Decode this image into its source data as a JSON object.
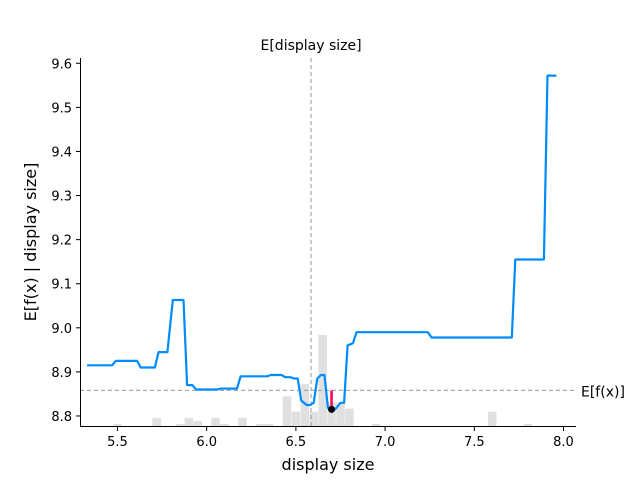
{
  "chart_data": {
    "type": "line",
    "title": "",
    "xlabel": "display size",
    "ylabel": "E[f(x) | display size]",
    "xlim": [
      5.29,
      8.07
    ],
    "ylim": [
      8.775,
      9.612
    ],
    "xticks": [
      5.5,
      6.0,
      6.5,
      7.0,
      7.5,
      8.0
    ],
    "xtick_labels": [
      "5.5",
      "6.0",
      "6.5",
      "7.0",
      "7.5",
      "8.0"
    ],
    "yticks": [
      8.8,
      8.9,
      9.0,
      9.1,
      9.2,
      9.3,
      9.4,
      9.5,
      9.6
    ],
    "ytick_labels": [
      "8.8",
      "8.9",
      "9.0",
      "9.1",
      "9.2",
      "9.3",
      "9.4",
      "9.5",
      "9.6"
    ],
    "expected_x": {
      "label": "E[display size]",
      "value": 6.585
    },
    "expected_y": {
      "label": "E[f(x)]",
      "value": 8.858
    },
    "highlight": {
      "x": 6.7,
      "y_point": 8.815,
      "y_ref": 8.858,
      "segment_color": "#ff0051",
      "point_color": "#000000"
    },
    "line_color": "#008bfb",
    "histogram_color": "#cccccc",
    "histogram": [
      {
        "x": 5.5,
        "count": 1
      },
      {
        "x": 5.72,
        "count": 3
      },
      {
        "x": 5.85,
        "count": 1
      },
      {
        "x": 5.9,
        "count": 3
      },
      {
        "x": 5.95,
        "count": 2
      },
      {
        "x": 6.05,
        "count": 3
      },
      {
        "x": 6.1,
        "count": 1
      },
      {
        "x": 6.2,
        "count": 3
      },
      {
        "x": 6.3,
        "count": 1
      },
      {
        "x": 6.35,
        "count": 1
      },
      {
        "x": 6.45,
        "count": 10
      },
      {
        "x": 6.5,
        "count": 5
      },
      {
        "x": 6.55,
        "count": 14
      },
      {
        "x": 6.6,
        "count": 5
      },
      {
        "x": 6.65,
        "count": 30
      },
      {
        "x": 6.7,
        "count": 8
      },
      {
        "x": 6.75,
        "count": 8
      },
      {
        "x": 6.8,
        "count": 6
      },
      {
        "x": 6.95,
        "count": 1
      },
      {
        "x": 7.6,
        "count": 5
      },
      {
        "x": 7.8,
        "count": 1
      }
    ],
    "series": [
      {
        "x": [
          5.33,
          5.47,
          5.49,
          5.61,
          5.63,
          5.71,
          5.73,
          5.78,
          5.81,
          5.87,
          5.89,
          5.92,
          5.94,
          6.06,
          6.08,
          6.17,
          6.19,
          6.34,
          6.36,
          6.42,
          6.44,
          6.47,
          6.49,
          6.51,
          6.53,
          6.56,
          6.58,
          6.6,
          6.62,
          6.64,
          6.66,
          6.68,
          6.7,
          6.72,
          6.75,
          6.77,
          6.79,
          6.82,
          6.84,
          6.86,
          6.88,
          7.24,
          7.26,
          7.42,
          7.44,
          7.71,
          7.73,
          7.84,
          7.86,
          7.89,
          7.91,
          7.96
        ],
        "y": [
          8.915,
          8.915,
          8.925,
          8.925,
          8.91,
          8.91,
          8.945,
          8.945,
          9.063,
          9.063,
          8.87,
          8.87,
          8.86,
          8.86,
          8.862,
          8.862,
          8.89,
          8.89,
          8.893,
          8.893,
          8.888,
          8.888,
          8.885,
          8.885,
          8.835,
          8.825,
          8.825,
          8.83,
          8.885,
          8.893,
          8.893,
          8.818,
          8.815,
          8.815,
          8.83,
          8.83,
          8.96,
          8.965,
          8.99,
          8.99,
          8.99,
          8.99,
          8.978,
          8.978,
          8.978,
          8.978,
          9.155,
          9.155,
          9.155,
          9.155,
          9.572,
          9.572
        ]
      }
    ]
  }
}
